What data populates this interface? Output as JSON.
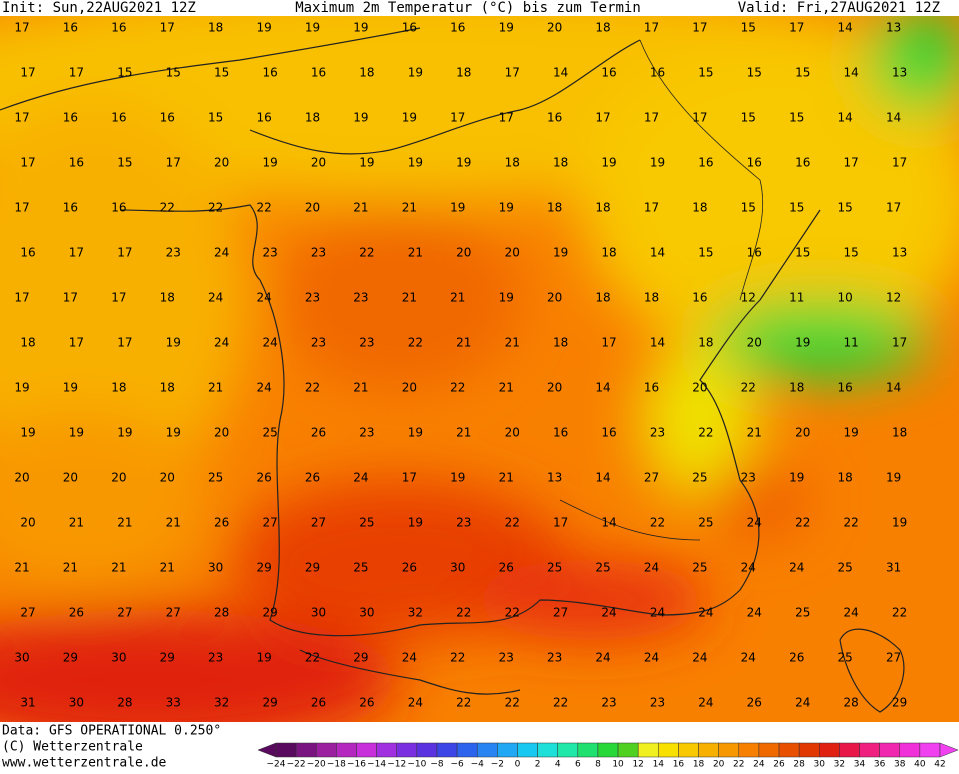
{
  "header": {
    "init": "Init: Sun,22AUG2021 12Z",
    "title": "Maximum 2m Temperatur (°C) bis zum Termin",
    "valid": "Valid: Fri,27AUG2021 12Z"
  },
  "footer": {
    "source": "Data: GFS OPERATIONAL 0.250°",
    "copyright": "(C) Wetterzentrale",
    "url": "www.wetterzentrale.de"
  },
  "colorbar": {
    "labels": [
      "−24",
      "−22",
      "−20",
      "−18",
      "−16",
      "−14",
      "−12",
      "−10",
      "−8",
      "−6",
      "−4",
      "−2",
      "0",
      "2",
      "4",
      "6",
      "8",
      "10",
      "12",
      "14",
      "16",
      "18",
      "20",
      "22",
      "24",
      "26",
      "28",
      "30",
      "32",
      "34",
      "36",
      "38",
      "40",
      "42"
    ],
    "colors": [
      "#5a0a5e",
      "#7a1480",
      "#9a20a0",
      "#b428c0",
      "#c830dc",
      "#a030e0",
      "#7a30e0",
      "#5a32e0",
      "#3c46e6",
      "#2c64ee",
      "#2884f2",
      "#20a8f4",
      "#18c8f0",
      "#1ee0d8",
      "#20e8a8",
      "#20e070",
      "#28d838",
      "#50d020",
      "#f0f020",
      "#f8e000",
      "#f8c800",
      "#f8b000",
      "#f89800",
      "#f88000",
      "#f06800",
      "#e85000",
      "#e03800",
      "#e02010",
      "#e81848",
      "#f02080",
      "#f028b0",
      "#f030d8",
      "#f040f0"
    ]
  },
  "temperatures": [
    [
      17,
      16,
      16,
      17,
      18,
      19,
      19,
      19,
      16,
      16,
      19,
      20,
      18,
      17,
      17,
      15,
      17,
      14,
      13
    ],
    [
      17,
      17,
      15,
      15,
      15,
      16,
      16,
      18,
      19,
      18,
      17,
      14,
      16,
      16,
      15,
      15,
      15,
      14,
      13
    ],
    [
      17,
      16,
      16,
      16,
      15,
      16,
      18,
      19,
      19,
      17,
      17,
      16,
      17,
      17,
      17,
      15,
      15,
      14,
      14
    ],
    [
      17,
      16,
      15,
      17,
      20,
      19,
      20,
      19,
      19,
      19,
      18,
      18,
      19,
      19,
      16,
      16,
      16,
      17,
      17
    ],
    [
      17,
      16,
      16,
      22,
      22,
      22,
      20,
      21,
      21,
      19,
      19,
      18,
      18,
      17,
      18,
      15,
      15,
      15,
      17
    ],
    [
      16,
      17,
      17,
      23,
      24,
      23,
      23,
      22,
      21,
      20,
      20,
      19,
      18,
      14,
      15,
      16,
      15,
      15,
      13
    ],
    [
      17,
      17,
      17,
      18,
      24,
      24,
      23,
      23,
      21,
      21,
      19,
      20,
      18,
      18,
      16,
      12,
      11,
      10,
      12
    ],
    [
      18,
      17,
      17,
      19,
      24,
      24,
      23,
      23,
      22,
      21,
      21,
      18,
      17,
      14,
      18,
      20,
      19,
      11,
      17
    ],
    [
      19,
      19,
      18,
      18,
      21,
      24,
      22,
      21,
      20,
      22,
      21,
      20,
      14,
      16,
      20,
      22,
      18,
      16,
      14
    ],
    [
      19,
      19,
      19,
      19,
      20,
      25,
      26,
      23,
      19,
      21,
      20,
      16,
      16,
      23,
      22,
      21,
      20,
      19,
      18
    ],
    [
      20,
      20,
      20,
      20,
      25,
      26,
      26,
      24,
      17,
      19,
      21,
      13,
      14,
      27,
      25,
      23,
      19,
      18,
      19
    ],
    [
      20,
      21,
      21,
      21,
      26,
      27,
      27,
      25,
      19,
      23,
      22,
      17,
      14,
      22,
      25,
      24,
      22,
      22,
      19
    ],
    [
      21,
      21,
      21,
      21,
      30,
      29,
      29,
      25,
      26,
      30,
      26,
      25,
      25,
      24,
      25,
      24,
      24,
      25,
      31
    ],
    [
      27,
      26,
      27,
      27,
      28,
      29,
      30,
      30,
      32,
      22,
      22,
      27,
      24,
      24,
      24,
      24,
      25,
      24,
      22
    ],
    [
      30,
      29,
      30,
      29,
      23,
      19,
      22,
      29,
      24,
      22,
      23,
      23,
      24,
      24,
      24,
      24,
      26,
      25,
      27
    ],
    [
      31,
      30,
      28,
      33,
      32,
      29,
      26,
      26,
      24,
      22,
      22,
      22,
      23,
      23,
      24,
      26,
      24,
      28,
      29
    ]
  ]
}
